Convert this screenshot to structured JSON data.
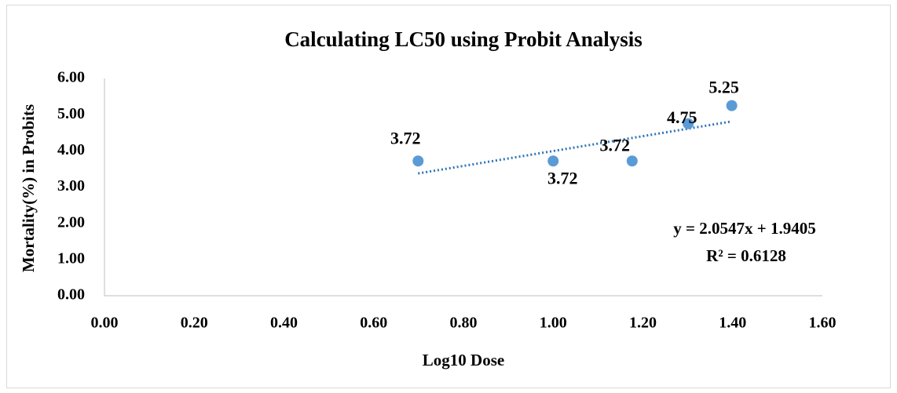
{
  "chart_data": {
    "type": "scatter",
    "title": "Calculating LC50 using Probit Analysis",
    "x_label": "Log10 Dose",
    "y_label": "Mortality(%) in Probits",
    "x": [
      0.699,
      1.0,
      1.176,
      1.301,
      1.398
    ],
    "values": [
      3.72,
      3.72,
      3.72,
      4.75,
      5.25
    ],
    "color": "#5b9bd5",
    "xlim": [
      0,
      1.6
    ],
    "ylim": [
      0,
      6
    ],
    "xticks": [
      {
        "value": 0,
        "label": "0.00"
      },
      {
        "value": 0.2,
        "label": "0.20"
      },
      {
        "value": 0.4,
        "label": "0.40"
      },
      {
        "value": 0.6,
        "label": "0.60"
      },
      {
        "value": 0.8,
        "label": "0.80"
      },
      {
        "value": 1.0,
        "label": "1.00"
      },
      {
        "value": 1.2,
        "label": "1.20"
      },
      {
        "value": 1.4,
        "label": "1.40"
      },
      {
        "value": 1.6,
        "label": "1.60"
      }
    ],
    "yticks": [
      {
        "value": 0,
        "label": "0.00"
      },
      {
        "value": 1,
        "label": "1.00"
      },
      {
        "value": 2,
        "label": "2.00"
      },
      {
        "value": 3,
        "label": "3.00"
      },
      {
        "value": 4,
        "label": "4.00"
      },
      {
        "value": 5,
        "label": "5.00"
      },
      {
        "value": 6,
        "label": "6.00"
      }
    ],
    "grid": false,
    "trendline": {
      "slope": 2.0547,
      "intercept": 1.9405,
      "color": "#2e75b6",
      "equation": "y = 2.0547x + 1.9405",
      "r2": "R² = 0.6128"
    }
  }
}
